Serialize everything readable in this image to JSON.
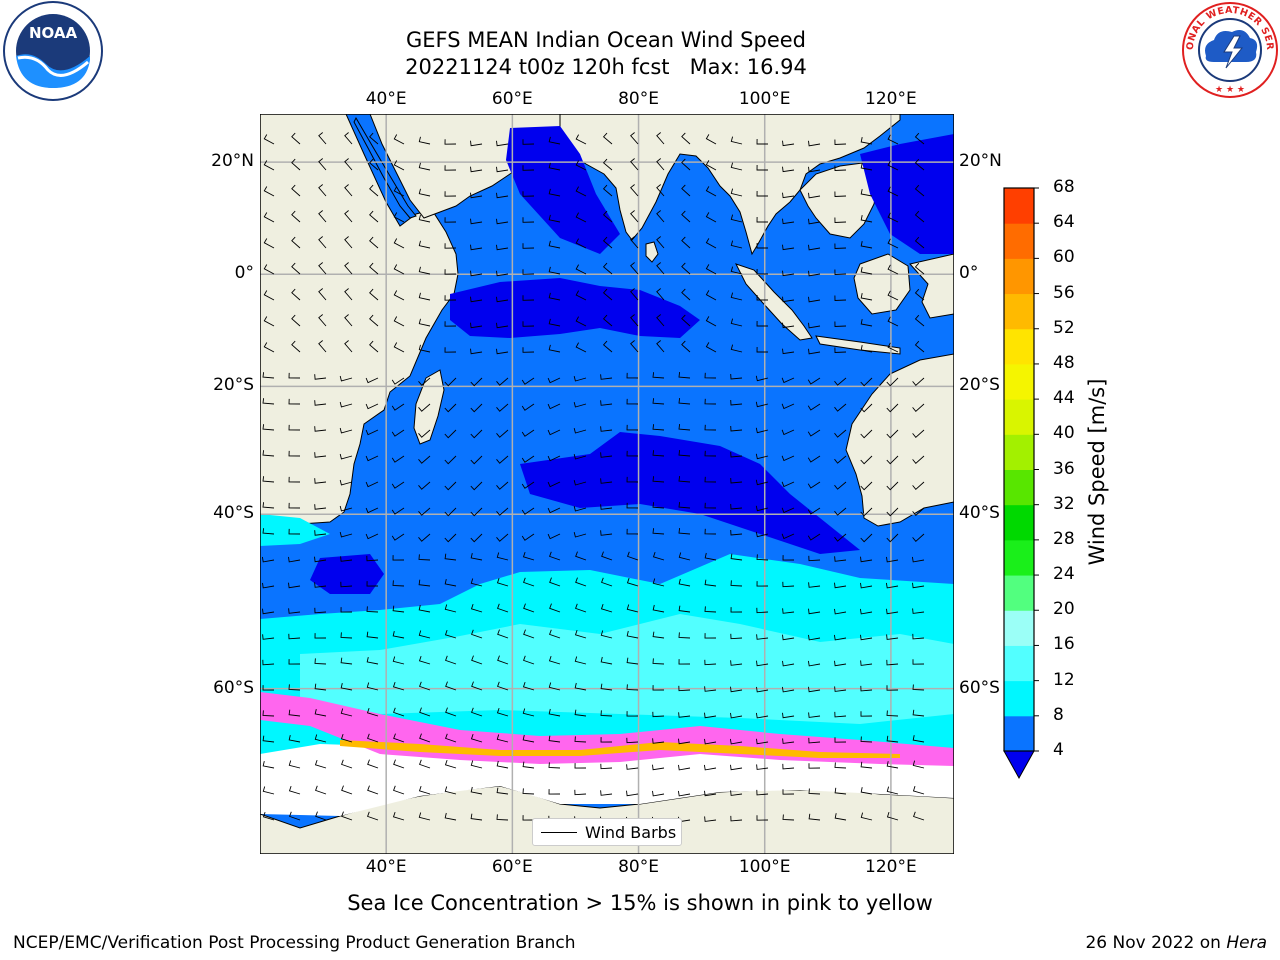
{
  "header": {
    "title_line1": "GEFS MEAN Indian Ocean Wind Speed",
    "title_line2": "20221124 t00z 120h fcst   Max: 16.94"
  },
  "logos": {
    "left": {
      "name": "noaa-logo",
      "text": "NOAA",
      "ring_text": "NATIONAL OCEANIC AND ATMOSPHERIC ADMINISTRATION · U.S. DEPARTMENT OF COMMERCE"
    },
    "right": {
      "name": "nws-logo",
      "ring_text": "NATIONAL WEATHER SERVICE"
    }
  },
  "map": {
    "lon_ticks": [
      "40°E",
      "60°E",
      "80°E",
      "100°E",
      "120°E"
    ],
    "lon_values": [
      40,
      60,
      80,
      100,
      120
    ],
    "lat_ticks_left": [
      "20°N",
      "0°",
      "20°S",
      "40°S",
      "60°S"
    ],
    "lat_ticks_right": [
      "20°N",
      "0°",
      "20°S",
      "40°S",
      "60°S"
    ],
    "lat_values": [
      20,
      0,
      -20,
      -40,
      -60
    ],
    "extent": {
      "lon_min": 20,
      "lon_max": 130,
      "lat_min": -72,
      "lat_max": 28
    },
    "colors": {
      "land": "#efefe0",
      "ice_free": "#ffffff",
      "grid": "#b0b0b0"
    }
  },
  "colorbar": {
    "title": "Wind Speed [m/s]",
    "labels": [
      "4",
      "8",
      "12",
      "16",
      "20",
      "24",
      "28",
      "32",
      "36",
      "40",
      "44",
      "48",
      "52",
      "56",
      "60",
      "64",
      "68"
    ],
    "levels": [
      4,
      8,
      12,
      16,
      20,
      24,
      28,
      32,
      36,
      40,
      44,
      48,
      52,
      56,
      60,
      64,
      68
    ],
    "colors": [
      "#0a74ff",
      "#00f7ff",
      "#52ffff",
      "#9bfff7",
      "#52ff7f",
      "#1aef1a",
      "#00d900",
      "#58e600",
      "#a3f000",
      "#d9f500",
      "#f5f500",
      "#ffe400",
      "#ffba00",
      "#ff9600",
      "#ff6c00",
      "#ff3f00",
      "#ff0f00"
    ],
    "under_color": "#0000ee"
  },
  "legend": {
    "label": "Wind Barbs"
  },
  "caption": "Sea Ice Concentration > 15% is shown in pink to yellow",
  "footer": {
    "left": "NCEP/EMC/Verification Post Processing Product Generation Branch",
    "date": "26 Nov 2022 on ",
    "host": "Hera"
  }
}
